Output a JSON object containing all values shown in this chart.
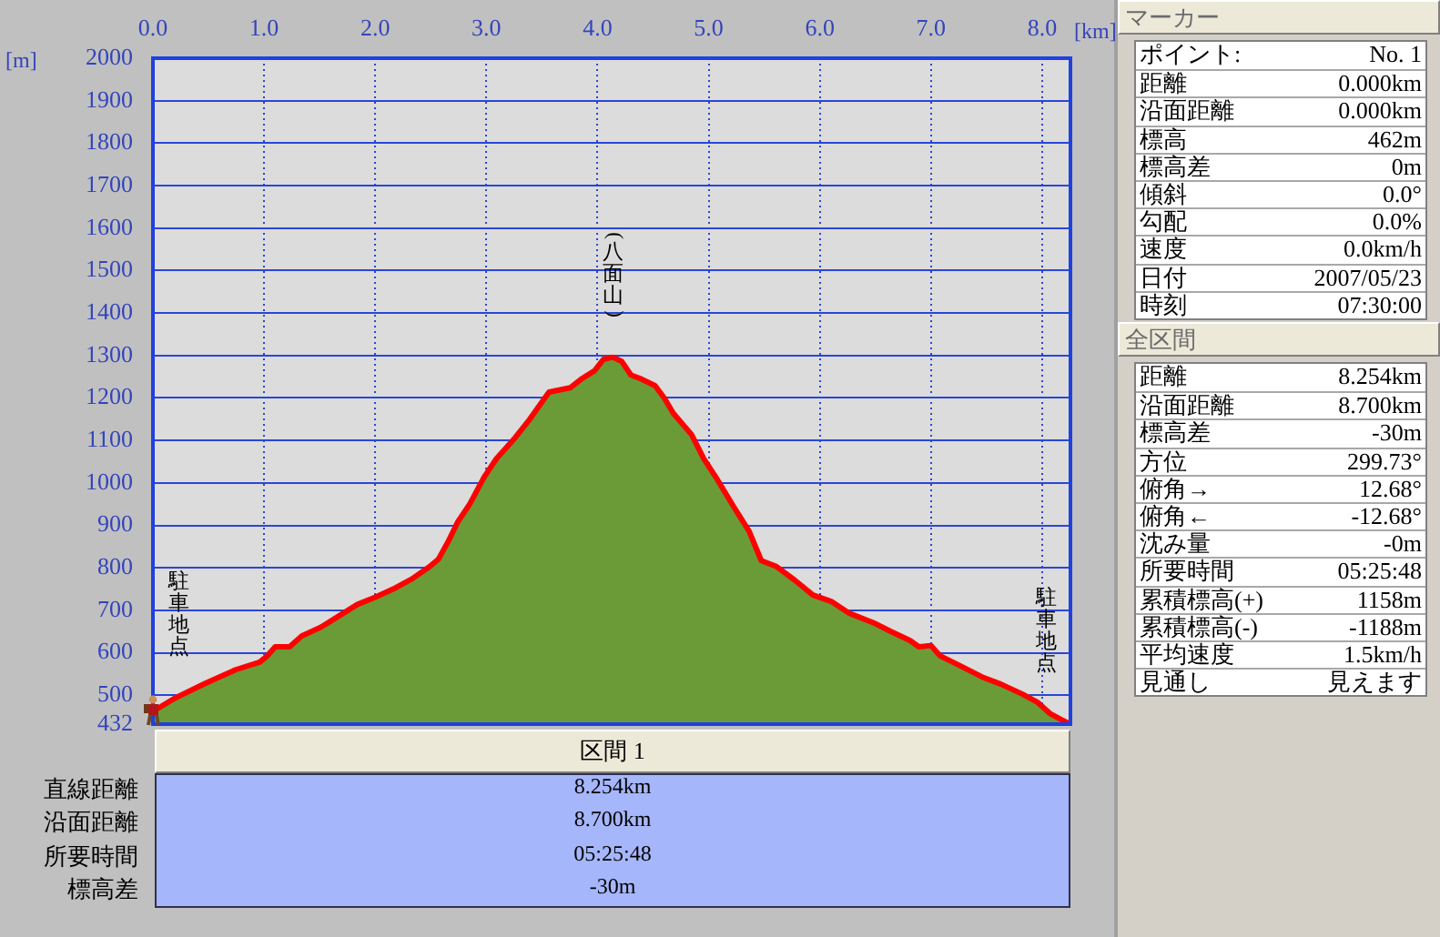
{
  "chart_data": [
    {
      "type": "area",
      "xlabel": "[km]",
      "ylabel": "[m]",
      "x": [
        0,
        0.197,
        0.47,
        0.743,
        0.96,
        1.03,
        1.1,
        1.23,
        1.34,
        1.51,
        1.67,
        1.84,
        2.0,
        2.16,
        2.33,
        2.49,
        2.57,
        2.66,
        2.74,
        2.85,
        2.98,
        3.09,
        3.26,
        3.39,
        3.563,
        3.753,
        3.862,
        3.972,
        4.054,
        4.136,
        4.218,
        4.3,
        4.382,
        4.518,
        4.6,
        4.681,
        4.845,
        4.955,
        5.063,
        5.227,
        5.364,
        5.473,
        5.61,
        5.774,
        5.938,
        6.102,
        6.265,
        6.48,
        6.64,
        6.81,
        6.89,
        7.0,
        7.08,
        7.25,
        7.46,
        7.63,
        7.82,
        7.96,
        8.07,
        8.17,
        8.254
      ],
      "series": [
        {
          "color": "#6b9b37",
          "values": [
            462,
            493,
            528,
            560,
            578,
            593,
            614,
            614,
            640,
            660,
            686,
            714,
            731,
            750,
            774,
            803,
            821,
            864,
            907,
            950,
            1014,
            1057,
            1107,
            1150,
            1214,
            1224,
            1246,
            1264,
            1291,
            1296,
            1286,
            1254,
            1246,
            1229,
            1200,
            1164,
            1114,
            1057,
            1014,
            943,
            886,
            817,
            803,
            771,
            736,
            721,
            693,
            671,
            650,
            629,
            614,
            617,
            593,
            571,
            543,
            526,
            503,
            483,
            457,
            443,
            432
          ]
        }
      ],
      "xlim": [
        0,
        8.254
      ],
      "xticks": [
        {
          "value": 0,
          "label": "0.0"
        },
        {
          "value": 1,
          "label": "1.0"
        },
        {
          "value": 2,
          "label": "2.0"
        },
        {
          "value": 3,
          "label": "3.0"
        },
        {
          "value": 4,
          "label": "4.0"
        },
        {
          "value": 5,
          "label": "5.0"
        },
        {
          "value": 6,
          "label": "6.0"
        },
        {
          "value": 7,
          "label": "7.0"
        },
        {
          "value": 8,
          "label": "8.0"
        }
      ],
      "ylim": [
        432,
        2000
      ],
      "yticks": [
        432,
        500,
        600,
        700,
        800,
        900,
        1000,
        1100,
        1200,
        1300,
        1400,
        1500,
        1600,
        1700,
        1800,
        1900,
        2000
      ],
      "grid": true,
      "annotations": [
        {
          "text": "(八面山)",
          "x": 4.14,
          "y": 1296
        },
        {
          "text": "駐車地点",
          "x": 0.24,
          "y": 500
        },
        {
          "text": "駐車地点",
          "x": 8.04,
          "y": 464
        }
      ]
    },
    {
      "type": "other",
      "title": "区間 1",
      "annotations": [
        "直線距離",
        "8.254km",
        "沿面距離",
        "8.700km",
        "所要時間",
        "05:25:48",
        "標高差",
        "-30m"
      ]
    },
    {
      "type": "other",
      "title": "マーカー",
      "annotations": [
        "ポイント:",
        "No. 1",
        "距離",
        "0.000km",
        "沿面距離",
        "0.000km",
        "標高",
        "462m",
        "標高差",
        "0m",
        "傾斜",
        "0.0°",
        "勾配",
        "0.0%",
        "速度",
        "0.0km/h",
        "日付",
        "2007/05/23",
        "時刻",
        "07:30:00"
      ]
    },
    {
      "type": "other",
      "title": "全区間",
      "annotations": [
        "距離",
        "8.254km",
        "沿面距離",
        "8.700km",
        "標高差",
        "-30m",
        "方位",
        "299.73°",
        "俯角→",
        "12.68°",
        "俯角←",
        "-12.68°",
        "沈み量",
        "-0m",
        "所要時間",
        "05:25:48",
        "累積標高(+)",
        "1158m",
        "累積標高(-)",
        "-1188m",
        "平均速度",
        "1.5km/h",
        "見通し",
        "見えます"
      ]
    }
  ]
}
